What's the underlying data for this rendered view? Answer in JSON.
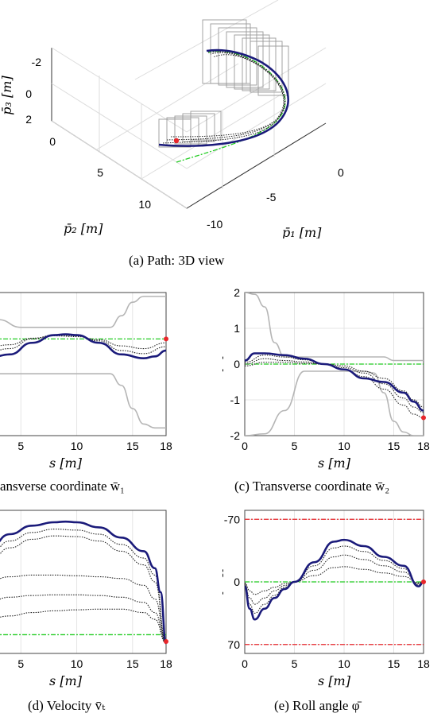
{
  "charts": {
    "a": {
      "caption": "(a) Path: 3D view",
      "z_ticks": [
        "-2",
        "0",
        "2"
      ],
      "y_ticks": [
        "0",
        "5",
        "10"
      ],
      "x_ticks": [
        "0",
        "-5",
        "-10"
      ],
      "z_label": "p̄₃ [m]",
      "y_label": "p̄₂ [m]",
      "x_label": "p̄₁ [m]"
    },
    "b": {
      "caption": "ansverse coordinate w̄₁",
      "x_ticks": [
        "5",
        "10",
        "15",
        "18"
      ],
      "x_label": "s [m]"
    },
    "c": {
      "caption": "(c) Transverse coordinate w̄₂",
      "y_ticks": [
        "-2",
        "-1",
        "0",
        "1",
        "2"
      ],
      "x_ticks": [
        "0",
        "5",
        "10",
        "15",
        "18"
      ],
      "y_label": "[m]",
      "x_label": "s [m]"
    },
    "d": {
      "caption": "(d) Velocity v̄ₜ",
      "x_ticks": [
        "5",
        "10",
        "15",
        "18"
      ],
      "x_label": "s [m]"
    },
    "e": {
      "caption": "(e) Roll angle φ̄",
      "y_ticks": [
        "70",
        "0",
        "-70"
      ],
      "x_ticks": [
        "0",
        "5",
        "10",
        "15",
        "18"
      ],
      "y_label": "[deg]",
      "x_label": "s [m]"
    }
  },
  "chart_data": [
    {
      "type": "line",
      "panel": "c",
      "title": "(c) Transverse coordinate w̄₂",
      "xlabel": "s [m]",
      "ylabel": "[m]",
      "xlim": [
        0,
        18
      ],
      "ylim": [
        2,
        -2
      ],
      "y_reversed": true,
      "x_ticks": [
        0,
        5,
        10,
        15,
        18
      ],
      "y_ticks": [
        -2,
        -1,
        0,
        1,
        2
      ],
      "series": [
        {
          "style": "solid-navy",
          "x": [
            0,
            1,
            2,
            4,
            6,
            8,
            10,
            12,
            14,
            16,
            17,
            18
          ],
          "y": [
            0.1,
            0.3,
            0.3,
            0.25,
            0.15,
            0.0,
            -0.15,
            -0.4,
            -0.5,
            -0.8,
            -1.05,
            -1.3
          ]
        },
        {
          "style": "dotted-black",
          "x": [
            0,
            2,
            4,
            6,
            8,
            10,
            12,
            14,
            16,
            17,
            18
          ],
          "y": [
            0.05,
            0.25,
            0.2,
            0.12,
            0.0,
            -0.15,
            -0.35,
            -0.7,
            -1.15,
            -1.4,
            -1.5
          ]
        },
        {
          "style": "dotted-black",
          "x": [
            0,
            2,
            4,
            6,
            8,
            10,
            12,
            14,
            16,
            17,
            18
          ],
          "y": [
            0.0,
            0.15,
            0.1,
            0.06,
            0.0,
            -0.1,
            -0.25,
            -0.55,
            -0.95,
            -1.2,
            -1.35
          ]
        },
        {
          "style": "dotted-black",
          "x": [
            0,
            2,
            4,
            6,
            8,
            10,
            12,
            14,
            16,
            17,
            18
          ],
          "y": [
            -0.05,
            0.05,
            0.05,
            0.02,
            0.0,
            -0.05,
            -0.2,
            -0.4,
            -0.75,
            -1.0,
            -1.2
          ]
        },
        {
          "style": "dash-dot-green",
          "x": [
            0,
            18
          ],
          "y": [
            0,
            0
          ]
        },
        {
          "style": "grey-bound",
          "x": [
            0,
            2,
            4,
            6,
            8,
            10,
            12,
            13,
            14,
            15,
            16,
            17,
            18
          ],
          "y": [
            -2,
            -1.95,
            -1.3,
            -0.2,
            -0.2,
            -0.2,
            -0.2,
            -0.25,
            -0.8,
            -1.6,
            -1.9,
            -2,
            -2
          ]
        },
        {
          "style": "grey-bound",
          "x": [
            0,
            1,
            2,
            3,
            4,
            6,
            8,
            10,
            12,
            14,
            15,
            16,
            18
          ],
          "y": [
            2,
            1.95,
            1.6,
            0.6,
            0.2,
            0.2,
            0.2,
            0.2,
            0.2,
            0.2,
            0.1,
            0.1,
            0.1
          ]
        }
      ],
      "markers": [
        {
          "x": 18,
          "y": -1.5,
          "color": "#e8262b"
        }
      ]
    },
    {
      "type": "line",
      "panel": "e",
      "title": "(e) Roll angle φ̄",
      "xlabel": "s [m]",
      "ylabel": "[deg]",
      "xlim": [
        0,
        18
      ],
      "ylim": [
        -80,
        80
      ],
      "x_ticks": [
        0,
        5,
        10,
        15,
        18
      ],
      "y_ticks": [
        -70,
        0,
        70
      ],
      "series": [
        {
          "style": "solid-navy",
          "x": [
            0,
            0.5,
            1,
            2,
            3,
            4,
            5,
            7,
            9,
            10,
            12,
            14,
            16,
            17.5,
            18
          ],
          "y": [
            5,
            30,
            42,
            30,
            18,
            8,
            0,
            -22,
            -45,
            -47,
            -40,
            -28,
            -18,
            5,
            0
          ]
        },
        {
          "style": "dotted-black",
          "x": [
            0,
            0.5,
            1,
            2,
            3,
            4,
            5,
            7,
            9,
            10,
            12,
            14,
            16,
            17.5,
            18
          ],
          "y": [
            3,
            25,
            35,
            25,
            15,
            6,
            0,
            -18,
            -38,
            -40,
            -34,
            -24,
            -15,
            3,
            0
          ]
        },
        {
          "style": "dotted-black",
          "x": [
            0,
            0.5,
            1,
            2,
            3,
            4,
            5,
            7,
            9,
            10,
            12,
            14,
            16,
            17.5,
            18
          ],
          "y": [
            2,
            18,
            25,
            18,
            10,
            4,
            0,
            -13,
            -28,
            -30,
            -25,
            -18,
            -11,
            2,
            0
          ]
        },
        {
          "style": "dotted-black",
          "x": [
            0,
            0.5,
            1,
            2,
            3,
            4,
            5,
            7,
            9,
            10,
            12,
            14,
            16,
            17.5,
            18
          ],
          "y": [
            1,
            10,
            14,
            10,
            6,
            2,
            0,
            -7,
            -16,
            -17,
            -14,
            -10,
            -6,
            1,
            0
          ]
        },
        {
          "style": "dash-dot-green",
          "x": [
            0,
            18
          ],
          "y": [
            0,
            0
          ]
        },
        {
          "style": "dash-dot-red",
          "x": [
            0,
            18
          ],
          "y": [
            70,
            70
          ]
        },
        {
          "style": "dash-dot-red",
          "x": [
            0,
            18
          ],
          "y": [
            -70,
            -70
          ]
        }
      ],
      "markers": [
        {
          "x": 18,
          "y": 0,
          "color": "#e8262b"
        }
      ]
    },
    {
      "type": "line",
      "panel": "b",
      "title": "ansverse coordinate w̄₁",
      "xlabel": "s [m]",
      "xlim": [
        0,
        18
      ],
      "x_ticks": [
        5,
        10,
        15,
        18
      ],
      "series": [
        {
          "style": "solid-navy",
          "x": [
            0,
            2,
            4,
            6,
            8,
            9,
            10,
            12,
            14,
            16,
            17,
            18
          ],
          "y": [
            -0.4,
            -0.5,
            -0.4,
            -0.1,
            0.1,
            0.12,
            0.1,
            -0.1,
            -0.4,
            -0.5,
            -0.45,
            -0.3
          ]
        },
        {
          "style": "dotted-black",
          "x": [
            0,
            2,
            4,
            6,
            8,
            10,
            12,
            14,
            16,
            18
          ],
          "y": [
            -0.3,
            -0.35,
            -0.25,
            0.0,
            0.1,
            0.08,
            -0.05,
            -0.3,
            -0.38,
            -0.2
          ]
        },
        {
          "style": "dotted-black",
          "x": [
            0,
            2,
            4,
            6,
            8,
            10,
            12,
            14,
            16,
            18
          ],
          "y": [
            -0.2,
            -0.22,
            -0.15,
            0.02,
            0.08,
            0.06,
            -0.02,
            -0.18,
            -0.25,
            -0.1
          ]
        },
        {
          "style": "dash-dot-green",
          "x": [
            0,
            18
          ],
          "y": [
            0,
            0
          ]
        },
        {
          "style": "grey-bound",
          "x": [
            0,
            1,
            2,
            3,
            5,
            8,
            11,
            13,
            14,
            15,
            16,
            18
          ],
          "y": [
            1.1,
            1.05,
            0.9,
            0.5,
            0.3,
            0.3,
            0.3,
            0.3,
            0.6,
            0.95,
            1.1,
            1.1
          ]
        },
        {
          "style": "grey-bound",
          "x": [
            0,
            3,
            5,
            8,
            11,
            13,
            14,
            15,
            16,
            17,
            18
          ],
          "y": [
            -0.9,
            -0.9,
            -0.9,
            -0.9,
            -0.9,
            -0.9,
            -1.2,
            -1.8,
            -2.2,
            -2.3,
            -2.3
          ]
        }
      ],
      "markers": [
        {
          "x": 18,
          "y": 0.0,
          "color": "#e8262b"
        }
      ]
    },
    {
      "type": "line",
      "panel": "d",
      "title": "(d) Velocity v̄ₜ",
      "xlabel": "s [m]",
      "xlim": [
        0,
        18
      ],
      "x_ticks": [
        5,
        10,
        15,
        18
      ],
      "series": [
        {
          "style": "solid-navy",
          "x": [
            0,
            2,
            4,
            6,
            8,
            9,
            10,
            12,
            14,
            16,
            17,
            17.5,
            18
          ],
          "y": [
            2.4,
            3.0,
            3.5,
            3.75,
            3.85,
            3.87,
            3.85,
            3.7,
            3.4,
            3.0,
            2.5,
            1.8,
            0.3
          ]
        },
        {
          "style": "dotted-black",
          "x": [
            0,
            2,
            4,
            6,
            8,
            10,
            12,
            14,
            16,
            17,
            18
          ],
          "y": [
            2.2,
            2.8,
            3.3,
            3.55,
            3.65,
            3.62,
            3.5,
            3.2,
            2.8,
            2.3,
            0.3
          ]
        },
        {
          "style": "dotted-black",
          "x": [
            0,
            2,
            4,
            6,
            8,
            10,
            12,
            14,
            16,
            17,
            18
          ],
          "y": [
            2.0,
            2.6,
            3.1,
            3.35,
            3.45,
            3.43,
            3.3,
            3.0,
            2.6,
            2.1,
            0.3
          ]
        },
        {
          "style": "dotted-black",
          "x": [
            0,
            2,
            4,
            6,
            8,
            10,
            12,
            14,
            16,
            17,
            18
          ],
          "y": [
            1.6,
            2.1,
            2.25,
            2.3,
            2.3,
            2.28,
            2.25,
            2.2,
            2.0,
            1.6,
            0.3
          ]
        },
        {
          "style": "dotted-black",
          "x": [
            0,
            2,
            4,
            6,
            8,
            10,
            12,
            14,
            16,
            17,
            18
          ],
          "y": [
            1.2,
            1.5,
            1.65,
            1.7,
            1.72,
            1.72,
            1.7,
            1.65,
            1.5,
            1.2,
            0.3
          ]
        },
        {
          "style": "dotted-black",
          "x": [
            0,
            2,
            4,
            6,
            8,
            10,
            12,
            14,
            16,
            17,
            18
          ],
          "y": [
            0.9,
            1.0,
            1.1,
            1.2,
            1.25,
            1.28,
            1.3,
            1.3,
            1.2,
            1.0,
            0.3
          ]
        },
        {
          "style": "dash-dot-green",
          "x": [
            0,
            18
          ],
          "y": [
            0.55,
            0.55
          ]
        }
      ],
      "markers": [
        {
          "x": 18,
          "y": 0.35,
          "color": "#e8262b"
        }
      ]
    }
  ]
}
